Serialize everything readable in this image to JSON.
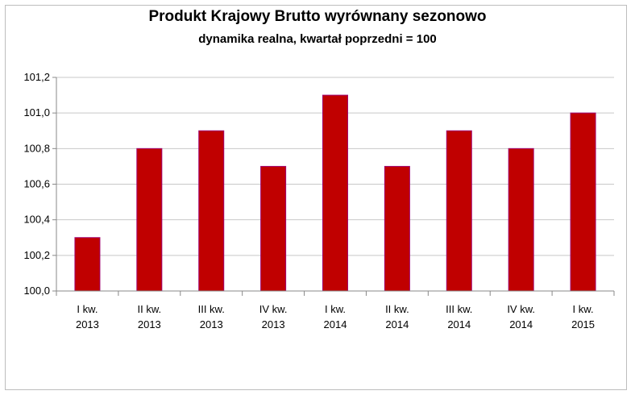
{
  "chart_data": {
    "type": "bar",
    "title": "Produkt Krajowy Brutto wyrównany sezonowo",
    "subtitle": "dynamika realna, kwartał poprzedni = 100",
    "categories": [
      [
        "I kw.",
        "2013"
      ],
      [
        "II kw.",
        "2013"
      ],
      [
        "III kw.",
        "2013"
      ],
      [
        "IV kw.",
        "2013"
      ],
      [
        "I kw.",
        "2014"
      ],
      [
        "II kw.",
        "2014"
      ],
      [
        "III kw.",
        "2014"
      ],
      [
        "IV kw.",
        "2014"
      ],
      [
        "I kw.",
        "2015"
      ]
    ],
    "values": [
      100.3,
      100.8,
      100.9,
      100.7,
      101.1,
      100.7,
      100.9,
      100.8,
      101.0
    ],
    "ylim": [
      100.0,
      101.2
    ],
    "yticks": [
      "100,0",
      "100,2",
      "100,4",
      "100,6",
      "100,8",
      "101,0",
      "101,2"
    ],
    "grid": true,
    "colors": {
      "bar": "#c00000",
      "bar_edge": "#a0006e",
      "grid": "#c8c8c8"
    }
  }
}
